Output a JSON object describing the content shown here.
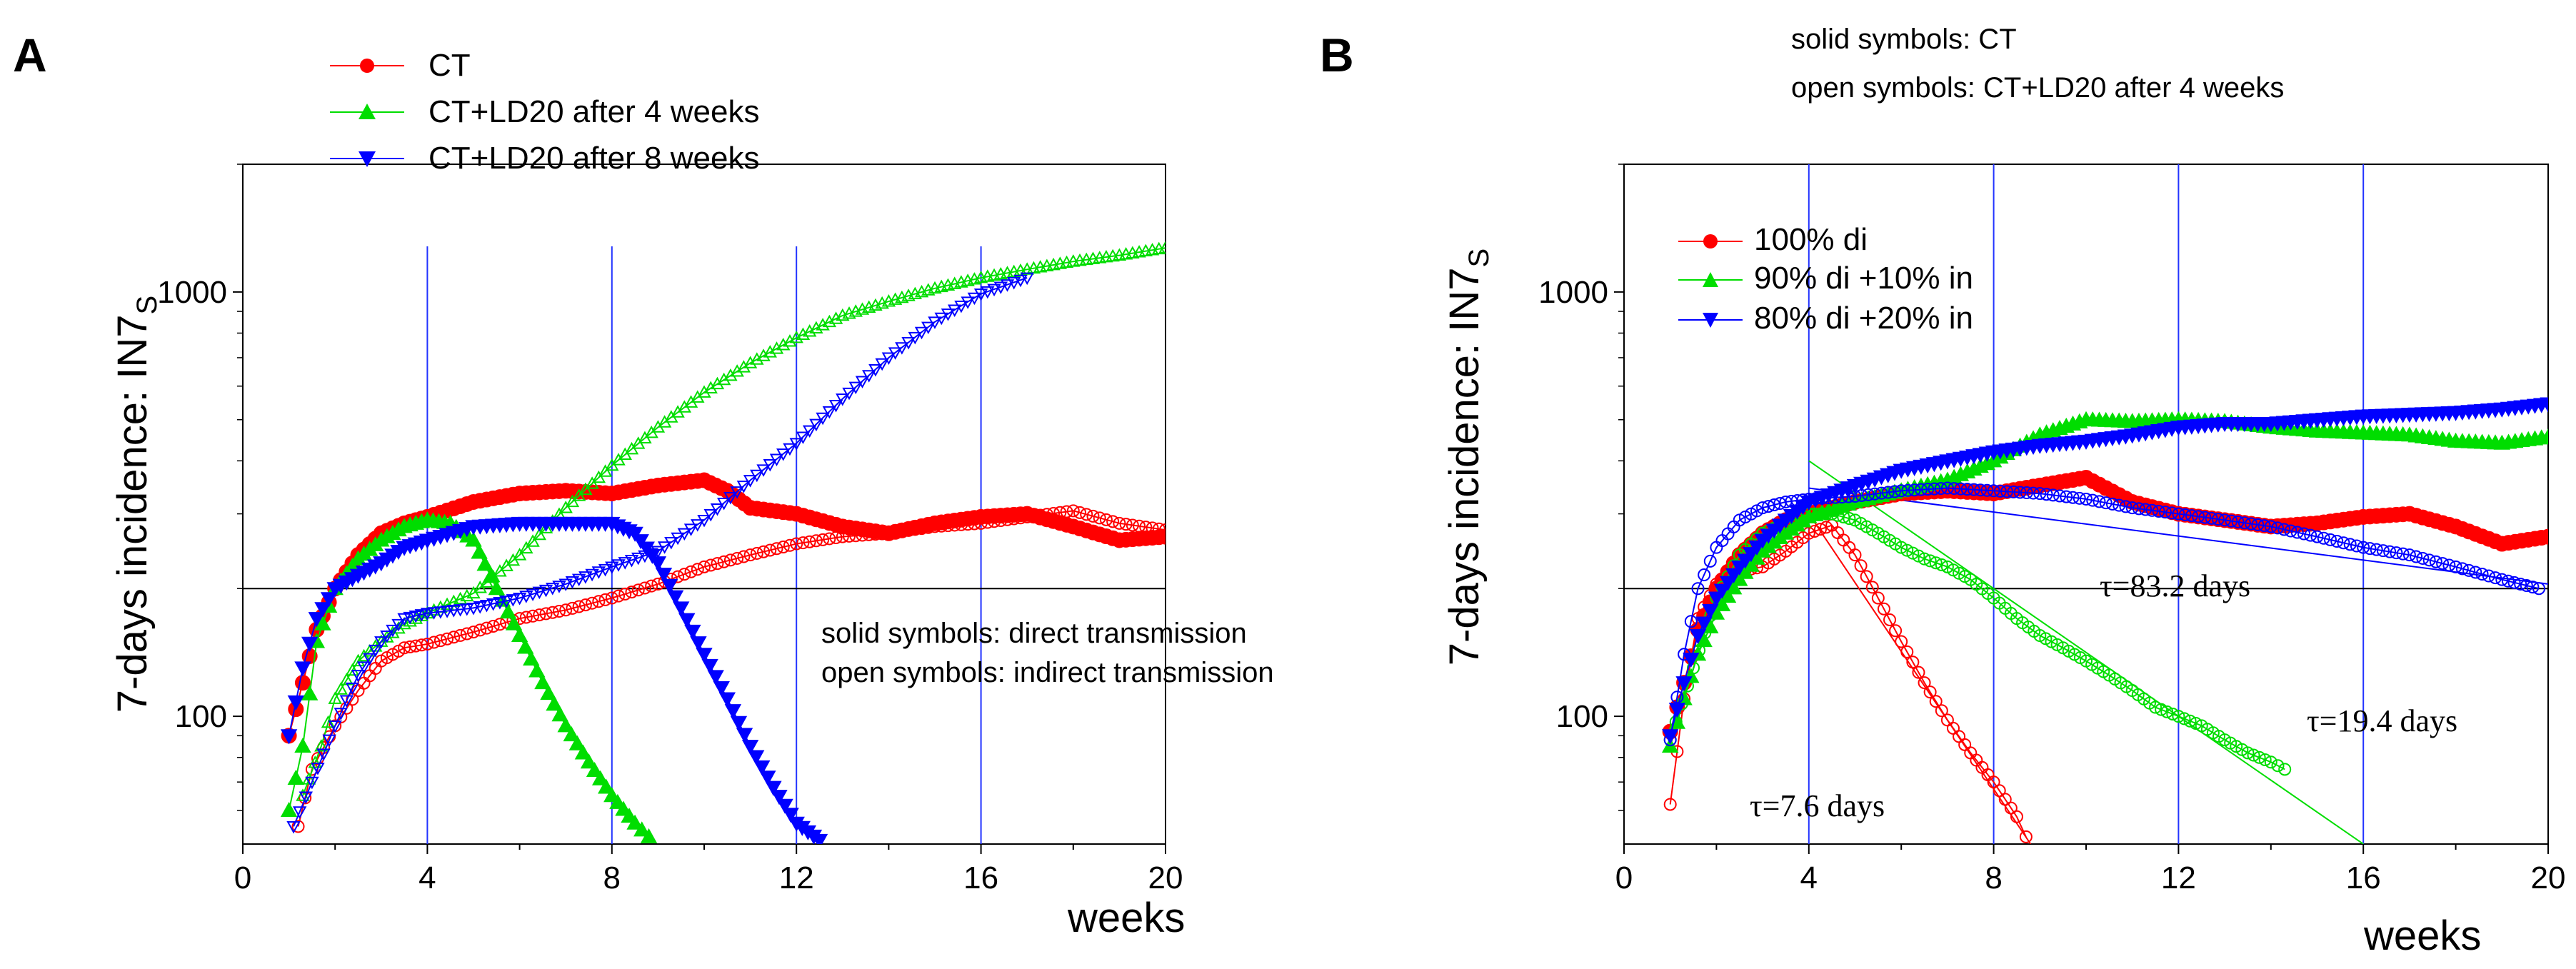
{
  "chart_data": [
    {
      "panel": "A",
      "type": "line",
      "yscale": "log",
      "xlim": [
        0,
        20
      ],
      "ylim": [
        50,
        2000
      ],
      "xlabel": "weeks",
      "ylabel": "7-days incidence: IN7",
      "ylabel_subscript": "S",
      "xticks": [
        0,
        4,
        8,
        12,
        16,
        20
      ],
      "xtick_labels": [
        "0",
        "4",
        "8",
        "12",
        "16",
        "20"
      ],
      "yticks": [
        100,
        1000
      ],
      "ytick_labels": [
        "100",
        "1000"
      ],
      "vlines": [
        4,
        8,
        12,
        16
      ],
      "hline": 200,
      "legend": [
        "CT",
        "CT+LD20 after 4 weeks",
        "CT+LD20 after 8 weeks"
      ],
      "annotations": [
        "solid symbols: direct transmission",
        "open symbols: indirect transmission"
      ],
      "series": [
        {
          "name": "CT direct",
          "color": "#ff0000",
          "marker": "circle",
          "filled": true,
          "x": [
            1.0,
            1.3,
            1.6,
            2.0,
            2.5,
            3.0,
            3.5,
            4.0,
            5.0,
            6.0,
            7.0,
            8.0,
            9.0,
            10.0,
            10.5,
            11.0,
            12.0,
            13.0,
            14.0,
            15.0,
            16.0,
            17.0,
            18.0,
            19.0,
            20.0
          ],
          "y": [
            90,
            120,
            160,
            200,
            240,
            270,
            285,
            295,
            320,
            335,
            340,
            335,
            350,
            360,
            340,
            310,
            300,
            280,
            270,
            285,
            295,
            300,
            280,
            260,
            265
          ]
        },
        {
          "name": "CT indirect",
          "color": "#ff0000",
          "marker": "circle",
          "filled": false,
          "x": [
            1.2,
            1.5,
            2.0,
            2.5,
            3.0,
            3.5,
            4.0,
            5.0,
            6.0,
            7.0,
            8.0,
            9.0,
            10.0,
            11.0,
            12.0,
            13.0,
            14.0,
            15.0,
            16.0,
            17.0,
            18.0,
            19.0,
            20.0
          ],
          "y": [
            55,
            75,
            95,
            115,
            135,
            145,
            148,
            158,
            170,
            178,
            190,
            205,
            225,
            240,
            255,
            265,
            270,
            280,
            285,
            295,
            305,
            285,
            275
          ]
        },
        {
          "name": "CT+LD20 after 4 weeks direct",
          "color": "#00dd00",
          "marker": "triangle-up",
          "filled": true,
          "x": [
            1.0,
            1.3,
            1.6,
            2.0,
            2.5,
            3.0,
            3.5,
            4.0,
            4.5,
            5.0,
            5.5,
            6.0,
            6.5,
            7.0,
            7.5,
            8.0,
            8.5,
            8.8
          ],
          "y": [
            60,
            85,
            150,
            200,
            235,
            260,
            280,
            290,
            285,
            260,
            200,
            155,
            120,
            95,
            78,
            65,
            56,
            52
          ]
        },
        {
          "name": "CT+LD20 after 4 weeks indirect",
          "color": "#00dd00",
          "marker": "triangle-up",
          "filled": false,
          "x": [
            1.3,
            1.7,
            2.0,
            2.5,
            3.0,
            3.5,
            4.0,
            5.0,
            6.0,
            7.0,
            8.0,
            9.0,
            10.0,
            11.0,
            12.0,
            13.0,
            14.0,
            15.0,
            16.0,
            17.0,
            18.0,
            19.0,
            20.0
          ],
          "y": [
            65,
            85,
            110,
            135,
            150,
            165,
            175,
            195,
            240,
            310,
            390,
            480,
            580,
            680,
            780,
            880,
            950,
            1020,
            1080,
            1130,
            1180,
            1220,
            1270
          ]
        },
        {
          "name": "CT+LD20 after 8 weeks direct",
          "color": "#0000ff",
          "marker": "triangle-down",
          "filled": true,
          "x": [
            1.0,
            1.3,
            1.6,
            2.0,
            2.5,
            3.0,
            3.5,
            4.0,
            5.0,
            6.0,
            7.0,
            8.0,
            8.5,
            9.0,
            9.5,
            10.0,
            10.5,
            11.0,
            11.5,
            12.0,
            12.5
          ],
          "y": [
            90,
            130,
            170,
            200,
            215,
            230,
            250,
            260,
            280,
            285,
            285,
            285,
            270,
            230,
            180,
            140,
            110,
            85,
            68,
            56,
            51
          ]
        },
        {
          "name": "CT+LD20 after 8 weeks indirect",
          "color": "#0000ff",
          "marker": "triangle-down",
          "filled": false,
          "x": [
            1.1,
            1.5,
            2.0,
            2.5,
            3.0,
            3.5,
            4.0,
            5.0,
            6.0,
            7.0,
            8.0,
            9.0,
            10.0,
            11.0,
            12.0,
            13.0,
            14.0,
            15.0,
            16.0,
            17.0
          ],
          "y": [
            55,
            70,
            95,
            125,
            150,
            170,
            175,
            180,
            190,
            205,
            225,
            245,
            290,
            360,
            440,
            560,
            700,
            850,
            990,
            1080
          ]
        }
      ]
    },
    {
      "panel": "B",
      "type": "line",
      "yscale": "log",
      "xlim": [
        0,
        20
      ],
      "ylim": [
        50,
        2000
      ],
      "xlabel": "weeks",
      "ylabel": "7-days incidence: IN7",
      "ylabel_subscript": "S",
      "xticks": [
        0,
        4,
        8,
        12,
        16,
        20
      ],
      "xtick_labels": [
        "0",
        "4",
        "8",
        "12",
        "16",
        "20"
      ],
      "yticks": [
        100,
        1000
      ],
      "ytick_labels": [
        "100",
        "1000"
      ],
      "vlines": [
        4,
        8,
        12,
        16
      ],
      "hline": 200,
      "legend": [
        "100% di",
        "90% di +10% in",
        "80% di +20% in"
      ],
      "notes": [
        "solid symbols: CT",
        "open symbols: CT+LD20 after 4 weeks"
      ],
      "tau_labels": [
        "τ=83.2 days",
        "τ=19.4 days",
        "τ=7.6 days"
      ],
      "series": [
        {
          "name": "100% di CT",
          "color": "#ff0000",
          "marker": "circle",
          "filled": true,
          "x": [
            1.0,
            1.3,
            1.6,
            2.0,
            2.5,
            3.0,
            3.5,
            4.0,
            5.0,
            6.0,
            7.0,
            8.0,
            9.0,
            10.0,
            11.0,
            12.0,
            13.0,
            14.0,
            15.0,
            16.0,
            17.0,
            18.0,
            19.0,
            20.0
          ],
          "y": [
            92,
            120,
            160,
            200,
            240,
            270,
            290,
            300,
            320,
            335,
            340,
            335,
            350,
            365,
            320,
            300,
            290,
            280,
            285,
            295,
            300,
            280,
            255,
            265
          ]
        },
        {
          "name": "100% di CT+LD20",
          "color": "#ff0000",
          "marker": "circle",
          "filled": false,
          "x": [
            1.0,
            1.3,
            1.6,
            2.0,
            2.5,
            3.0,
            3.5,
            4.0,
            4.5,
            5.0,
            5.5,
            6.0,
            6.5,
            7.0,
            7.5,
            8.0,
            8.5,
            8.7
          ],
          "y": [
            62,
            110,
            170,
            205,
            220,
            225,
            245,
            270,
            282,
            240,
            190,
            150,
            120,
            98,
            82,
            70,
            58,
            52
          ]
        },
        {
          "name": "90% di +10% in CT",
          "color": "#00dd00",
          "marker": "triangle-up",
          "filled": true,
          "x": [
            1.0,
            1.3,
            1.6,
            2.0,
            2.5,
            3.0,
            3.5,
            4.0,
            5.0,
            6.0,
            7.0,
            8.0,
            9.0,
            10.0,
            11.0,
            12.0,
            13.0,
            14.0,
            15.0,
            16.0,
            17.0,
            18.0,
            19.0,
            20.0
          ],
          "y": [
            85,
            110,
            140,
            175,
            210,
            245,
            270,
            295,
            320,
            340,
            360,
            400,
            460,
            500,
            495,
            500,
            495,
            480,
            470,
            465,
            460,
            445,
            440,
            455
          ]
        },
        {
          "name": "90% di +10% in CT+LD20",
          "color": "#00dd00",
          "marker": "circle",
          "filled": false,
          "x": [
            1.0,
            1.5,
            2.0,
            2.5,
            3.0,
            3.5,
            4.0,
            4.5,
            5.0,
            5.5,
            6.0,
            6.5,
            7.0,
            7.5,
            8.0,
            8.5,
            9.0,
            9.5,
            10.0,
            10.5,
            11.0,
            11.5,
            12.0,
            12.5,
            13.0,
            13.5,
            14.0,
            14.3
          ],
          "y": [
            88,
            130,
            190,
            240,
            270,
            285,
            300,
            300,
            290,
            270,
            250,
            235,
            225,
            210,
            190,
            170,
            155,
            145,
            135,
            125,
            115,
            105,
            100,
            95,
            88,
            82,
            78,
            75
          ]
        },
        {
          "name": "80% di +20% in CT",
          "color": "#0000ff",
          "marker": "triangle-down",
          "filled": true,
          "x": [
            1.0,
            1.3,
            1.6,
            2.0,
            2.5,
            3.0,
            3.5,
            4.0,
            5.0,
            6.0,
            7.0,
            8.0,
            9.0,
            10.0,
            11.0,
            12.0,
            13.0,
            14.0,
            15.0,
            16.0,
            17.0,
            18.0,
            19.0,
            20.0
          ],
          "y": [
            90,
            120,
            155,
            190,
            225,
            260,
            290,
            320,
            350,
            380,
            400,
            420,
            435,
            445,
            460,
            480,
            490,
            490,
            500,
            510,
            515,
            520,
            530,
            545
          ]
        },
        {
          "name": "80% di +20% in CT+LD20",
          "color": "#0000ff",
          "marker": "circle",
          "filled": false,
          "x": [
            1.0,
            1.3,
            1.6,
            2.0,
            2.5,
            3.0,
            3.5,
            4.0,
            5.0,
            6.0,
            7.0,
            8.0,
            9.0,
            10.0,
            11.0,
            12.0,
            13.0,
            14.0,
            15.0,
            16.0,
            17.0,
            18.0,
            19.0,
            19.8
          ],
          "y": [
            88,
            140,
            200,
            250,
            290,
            310,
            320,
            325,
            330,
            340,
            345,
            340,
            335,
            325,
            310,
            300,
            290,
            280,
            265,
            250,
            240,
            225,
            210,
            200
          ]
        }
      ],
      "fit_lines": [
        {
          "color": "#0000ff",
          "tau_days": 83.2,
          "x": [
            4,
            20
          ],
          "y": [
            345,
            205
          ]
        },
        {
          "color": "#00dd00",
          "tau_days": 19.4,
          "x": [
            4,
            16
          ],
          "y": [
            400,
            50
          ]
        },
        {
          "color": "#ff0000",
          "tau_days": 7.6,
          "x": [
            4,
            8.8
          ],
          "y": [
            300,
            50
          ]
        }
      ]
    }
  ]
}
